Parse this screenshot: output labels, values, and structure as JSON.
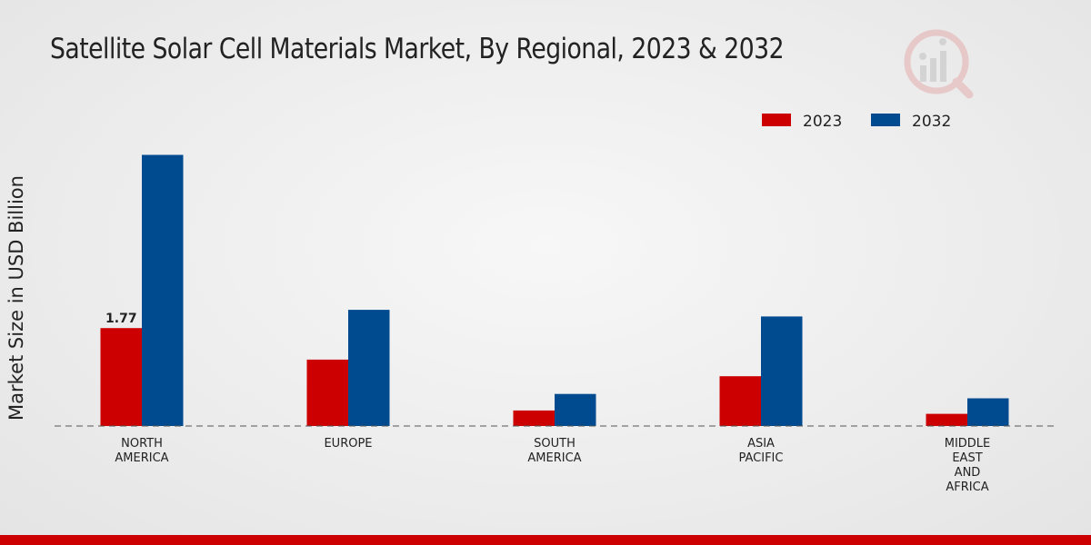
{
  "chart_data": {
    "type": "bar",
    "title": "Satellite Solar Cell Materials Market, By Regional, 2023 & 2032",
    "ylabel": "Market Size in USD Billion",
    "xlabel": "",
    "categories": [
      [
        "NORTH",
        "AMERICA"
      ],
      [
        "EUROPE"
      ],
      [
        "SOUTH",
        "AMERICA"
      ],
      [
        "ASIA",
        "PACIFIC"
      ],
      [
        "MIDDLE",
        "EAST",
        "AND",
        "AFRICA"
      ]
    ],
    "series": [
      {
        "name": "2023",
        "color": "#cc0000",
        "values": [
          1.77,
          1.2,
          0.28,
          0.9,
          0.22
        ]
      },
      {
        "name": "2032",
        "color": "#004a8f",
        "values": [
          4.9,
          2.1,
          0.58,
          1.98,
          0.5
        ]
      }
    ],
    "data_labels": [
      {
        "series": 0,
        "category": 0,
        "text": "1.77"
      }
    ],
    "ylim": [
      0,
      6.5
    ],
    "grid": false,
    "legend_position": "top-right",
    "baseline_style": "dashed"
  }
}
